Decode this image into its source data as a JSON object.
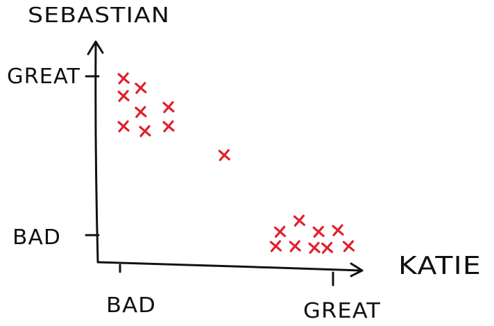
{
  "chart_data": {
    "type": "scatter",
    "title": "",
    "xlabel": "KATIE",
    "ylabel": "SEBASTIAN",
    "x_ticks": [
      {
        "value": 0,
        "label": "BAD"
      },
      {
        "value": 1,
        "label": "GREAT"
      }
    ],
    "y_ticks": [
      {
        "value": 0,
        "label": "BAD"
      },
      {
        "value": 1,
        "label": "GREAT"
      }
    ],
    "xlim": [
      -0.09,
      1.14
    ],
    "ylim": [
      -0.15,
      1.23
    ],
    "grid": false,
    "legend": "none",
    "marker_color": "#e0202a",
    "axis_color": "#111111",
    "points": [
      {
        "x": 0.03,
        "y": 1.0
      },
      {
        "x": 0.11,
        "y": 0.94
      },
      {
        "x": 0.03,
        "y": 0.89
      },
      {
        "x": 0.11,
        "y": 0.79
      },
      {
        "x": 0.24,
        "y": 0.82
      },
      {
        "x": 0.03,
        "y": 0.7
      },
      {
        "x": 0.13,
        "y": 0.67
      },
      {
        "x": 0.24,
        "y": 0.7
      },
      {
        "x": 0.5,
        "y": 0.52
      },
      {
        "x": 0.85,
        "y": 0.11
      },
      {
        "x": 0.76,
        "y": 0.04
      },
      {
        "x": 0.94,
        "y": 0.04
      },
      {
        "x": 1.03,
        "y": 0.05
      },
      {
        "x": 0.74,
        "y": -0.05
      },
      {
        "x": 0.83,
        "y": -0.05
      },
      {
        "x": 0.92,
        "y": -0.06
      },
      {
        "x": 0.98,
        "y": -0.06
      },
      {
        "x": 1.08,
        "y": -0.05
      }
    ]
  }
}
